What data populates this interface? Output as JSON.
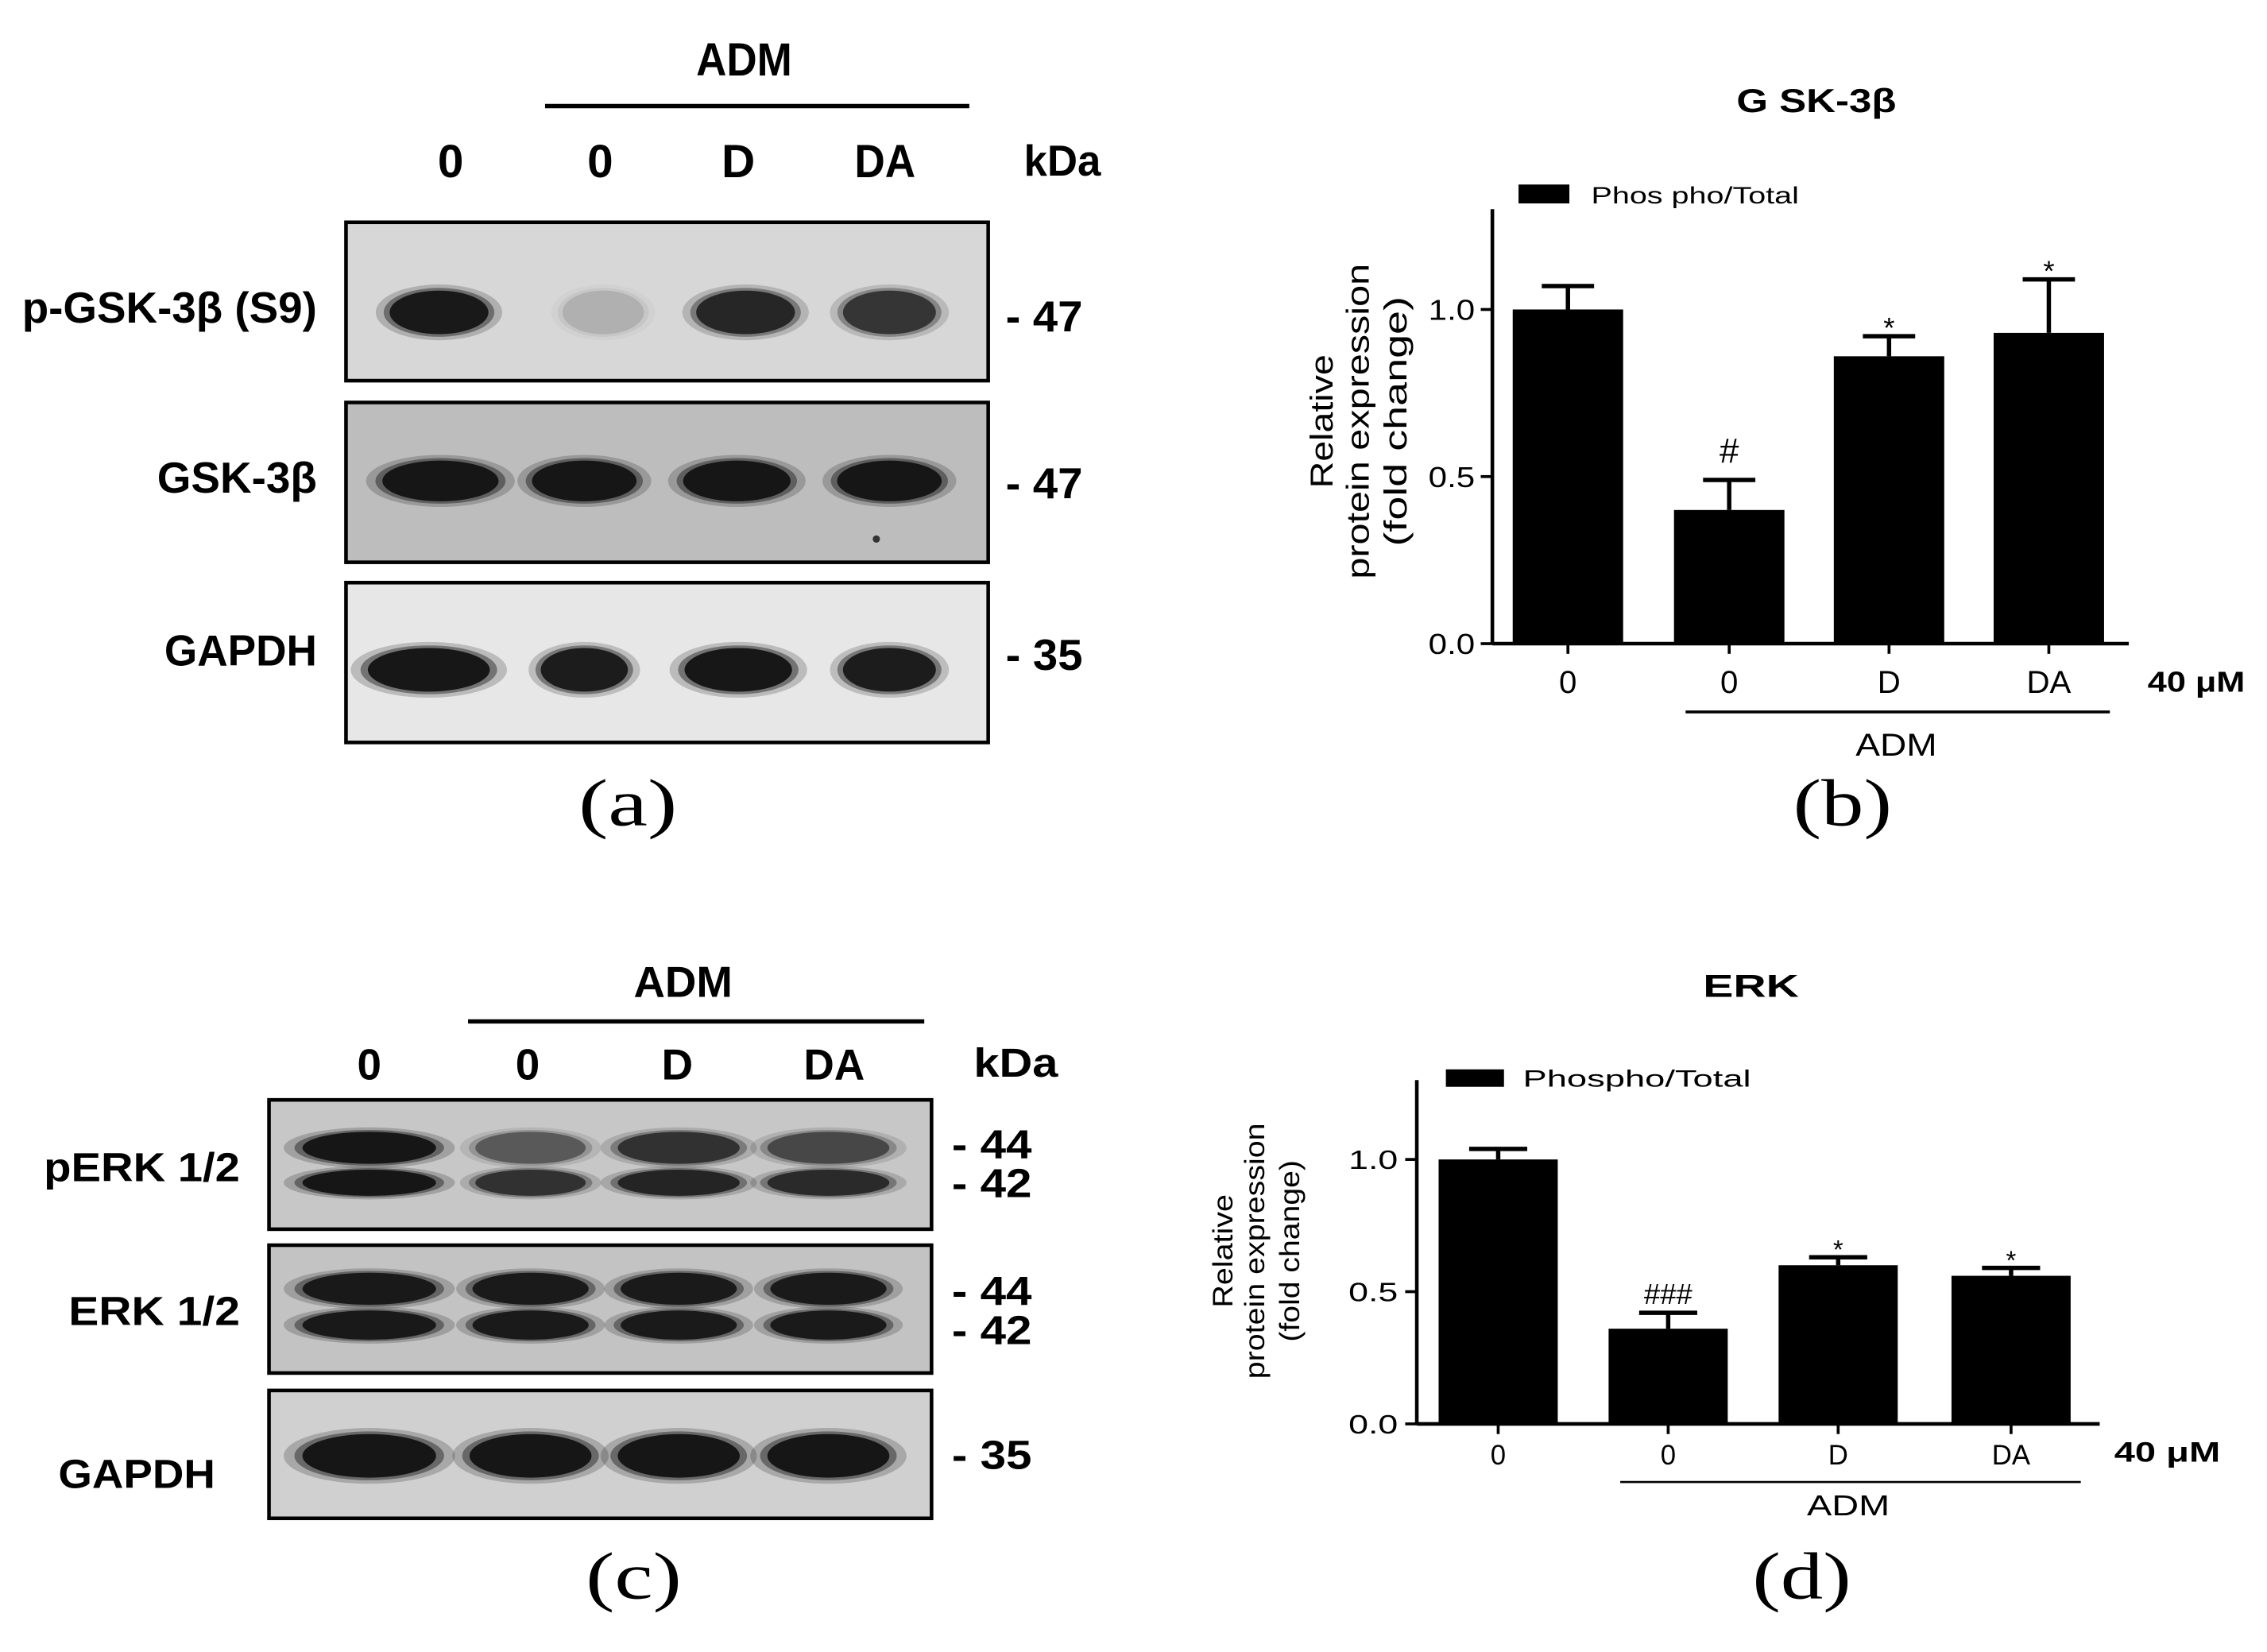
{
  "blots": [
    {
      "panel_label": "(a)",
      "group_label": "ADM",
      "lanes": [
        "0",
        "0",
        "D",
        "DA"
      ],
      "mw_unit": "kDa",
      "rows": [
        {
          "label": "p-GSK-3β (S9)",
          "markers": [
            "- 47"
          ],
          "band_intensity": [
            [
              0.92
            ],
            [
              0.12
            ],
            [
              0.8
            ],
            [
              0.7
            ]
          ]
        },
        {
          "label": "GSK-3β",
          "markers": [
            "- 47"
          ],
          "band_intensity": [
            [
              0.95
            ],
            [
              0.95
            ],
            [
              0.95
            ],
            [
              0.95
            ]
          ]
        },
        {
          "label": "GAPDH",
          "markers": [
            "- 35"
          ],
          "band_intensity": [
            [
              0.95
            ],
            [
              0.9
            ],
            [
              0.95
            ],
            [
              0.9
            ]
          ]
        }
      ]
    },
    {
      "panel_label": "(c)",
      "group_label": "ADM",
      "lanes": [
        "0",
        "0",
        "D",
        "DA"
      ],
      "mw_unit": "kDa",
      "rows": [
        {
          "label": "pERK 1/2",
          "markers": [
            "- 44",
            "- 42"
          ],
          "band_intensity": [
            [
              0.95,
              0.95
            ],
            [
              0.45,
              0.7
            ],
            [
              0.7,
              0.8
            ],
            [
              0.55,
              0.75
            ]
          ]
        },
        {
          "label": "ERK 1/2",
          "markers": [
            "- 44",
            "- 42"
          ],
          "band_intensity": [
            [
              0.92,
              0.92
            ],
            [
              0.9,
              0.9
            ],
            [
              0.9,
              0.9
            ],
            [
              0.9,
              0.9
            ]
          ]
        },
        {
          "label": "GAPDH",
          "markers": [
            "- 35"
          ],
          "band_intensity": [
            [
              0.95
            ],
            [
              0.95
            ],
            [
              0.95
            ],
            [
              0.95
            ]
          ]
        }
      ]
    }
  ],
  "chart_data": [
    {
      "type": "bar",
      "panel_label": "(b)",
      "title": "G SK-3β",
      "categories": [
        "0",
        "0",
        "D",
        "DA"
      ],
      "series": [
        {
          "name": "Phos pho/Total",
          "values": [
            1.0,
            0.4,
            0.86,
            0.93
          ],
          "errors": [
            0.07,
            0.09,
            0.06,
            0.16
          ]
        }
      ],
      "significance": [
        "",
        "#",
        "*",
        "*"
      ],
      "ylabel": [
        "Relative",
        "protein expression",
        "(fold change)"
      ],
      "yticks": [
        "0.0",
        "0.5",
        "1.0"
      ],
      "ylim": [
        0,
        1.3
      ],
      "concentration_label": "40 μM",
      "group_label": "ADM",
      "legend_position": "top-left",
      "grid": false
    },
    {
      "type": "bar",
      "panel_label": "(d)",
      "title": "ERK",
      "categories": [
        "0",
        "0",
        "D",
        "DA"
      ],
      "series": [
        {
          "name": "Phospho/Total",
          "values": [
            1.0,
            0.36,
            0.6,
            0.56
          ],
          "errors": [
            0.04,
            0.06,
            0.03,
            0.03
          ]
        }
      ],
      "significance": [
        "",
        "###",
        "*",
        "*"
      ],
      "ylabel": [
        "Relative",
        "protein expression",
        "(fold change)"
      ],
      "yticks": [
        "0.0",
        "0.5",
        "1.0"
      ],
      "ylim": [
        0,
        1.3
      ],
      "concentration_label": "40 μM",
      "group_label": "ADM",
      "legend_position": "top-left",
      "grid": false
    }
  ]
}
